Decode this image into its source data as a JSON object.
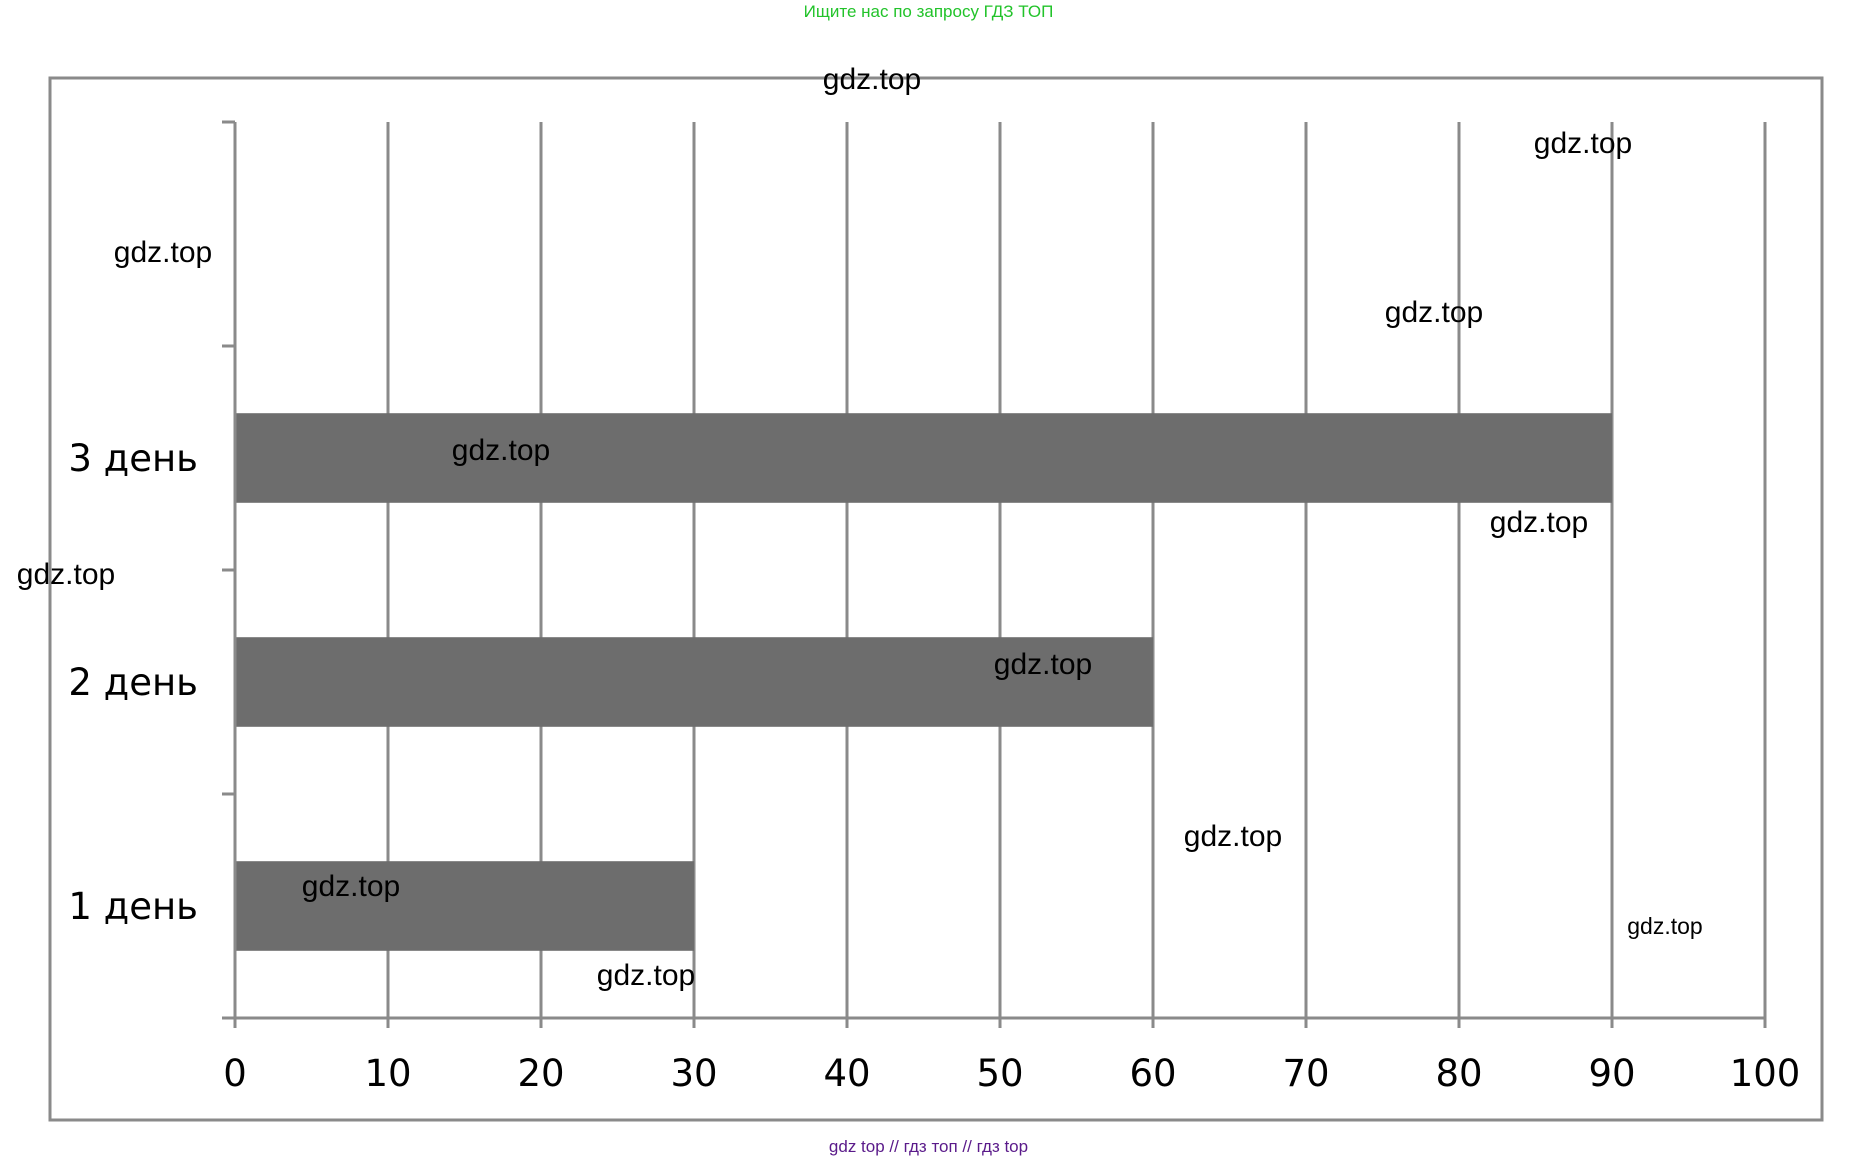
{
  "header": {
    "top_note": "Ищите нас по запросу ГДЗ ТОП",
    "bottom_note": "gdz top  //  гдз топ  //  гдз top"
  },
  "colors": {
    "top_note": "#22c32a",
    "bottom_note": "#5a1a8a",
    "bar": "#6d6d6d",
    "grid": "#8a8a8a",
    "frame": "#8a8a8a",
    "text": "#000000"
  },
  "watermark": "gdz.top",
  "chart_data": {
    "type": "bar",
    "orientation": "horizontal",
    "categories": [
      "1 день",
      "2 день",
      "3 день",
      ""
    ],
    "values": [
      30,
      60,
      90,
      null
    ],
    "xlim": [
      0,
      100
    ],
    "xticks": [
      0,
      10,
      20,
      30,
      40,
      50,
      60,
      70,
      80,
      90,
      100
    ],
    "xticklabels": [
      "0",
      "10",
      "20",
      "30",
      "40",
      "50",
      "60",
      "70",
      "80",
      "90",
      "100"
    ],
    "title": "",
    "xlabel": "",
    "ylabel": "",
    "grid": "vertical",
    "legend": "none"
  }
}
